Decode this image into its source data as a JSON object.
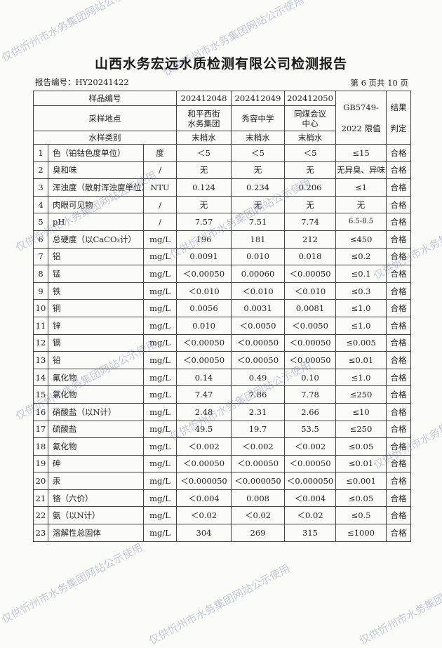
{
  "title": "山西水务宏远水质检测有限公司检测报告",
  "report_no": "报告编号：HY20241422",
  "page_no": "第 6 页共 10 页",
  "watermark": "仅供忻州市水务集团网站公示使用",
  "header": {
    "sample_no_label": "样品编号",
    "site_label": "采样地点",
    "type_label": "水样类别",
    "sample_nos": [
      "202412048",
      "202412049",
      "202412050"
    ],
    "sites": [
      "和平西街水务集团",
      "秀容中学",
      "同煤会议中心"
    ],
    "types": [
      "末梢水",
      "末梢水",
      "末梢水"
    ],
    "limit_label": "GB5749-2022 限值",
    "result_label": "结果判定"
  },
  "rows": [
    [
      "1",
      "色（铂钴色度单位）",
      "度",
      "＜5",
      "＜5",
      "＜5",
      "≤15",
      "合格"
    ],
    [
      "2",
      "臭和味",
      "/",
      "无",
      "无",
      "无",
      "无异臭、异味",
      "合格"
    ],
    [
      "3",
      "浑浊度（散射浑浊度单位）",
      "NTU",
      "0.124",
      "0.234",
      "0.206",
      "≤1",
      "合格"
    ],
    [
      "4",
      "肉眼可见物",
      "/",
      "无",
      "无",
      "无",
      "无",
      "合格"
    ],
    [
      "5",
      "pH",
      "/",
      "7.57",
      "7.51",
      "7.74",
      "6.5-8.5",
      "合格"
    ],
    [
      "6",
      "总硬度（以CaCO₃计）",
      "mg/L",
      "196",
      "181",
      "212",
      "≤450",
      "合格"
    ],
    [
      "7",
      "铝",
      "mg/L",
      "0.0091",
      "0.010",
      "0.018",
      "≤0.2",
      "合格"
    ],
    [
      "8",
      "锰",
      "mg/L",
      "＜0.00050",
      "0.00060",
      "＜0.00050",
      "≤0.1",
      "合格"
    ],
    [
      "9",
      "铁",
      "mg/L",
      "＜0.010",
      "＜0.010",
      "＜0.010",
      "≤0.3",
      "合格"
    ],
    [
      "10",
      "铜",
      "mg/L",
      "0.0056",
      "0.0031",
      "0.0081",
      "≤1.0",
      "合格"
    ],
    [
      "11",
      "锌",
      "mg/L",
      "0.010",
      "＜0.0050",
      "＜0.0050",
      "≤1.0",
      "合格"
    ],
    [
      "12",
      "镉",
      "mg/L",
      "＜0.00050",
      "＜0.00050",
      "＜0.00050",
      "≤0.005",
      "合格"
    ],
    [
      "13",
      "铅",
      "mg/L",
      "＜0.00050",
      "＜0.00050",
      "＜0.00050",
      "≤0.01",
      "合格"
    ],
    [
      "14",
      "氟化物",
      "mg/L",
      "0.14",
      "0.49",
      "0.10",
      "≤1.0",
      "合格"
    ],
    [
      "15",
      "氯化物",
      "mg/L",
      "7.47",
      "7.86",
      "7.78",
      "≤250",
      "合格"
    ],
    [
      "16",
      "硝酸盐（以N计）",
      "mg/L",
      "2.48",
      "2.31",
      "2.66",
      "≤10",
      "合格"
    ],
    [
      "17",
      "硫酸盐",
      "mg/L",
      "49.5",
      "19.7",
      "53.5",
      "≤250",
      "合格"
    ],
    [
      "18",
      "氰化物",
      "mg/L",
      "＜0.002",
      "＜0.002",
      "＜0.002",
      "≤0.05",
      "合格"
    ],
    [
      "19",
      "砷",
      "mg/L",
      "＜0.00050",
      "＜0.00050",
      "＜0.00050",
      "≤0.01",
      "合格"
    ],
    [
      "20",
      "汞",
      "mg/L",
      "＜0.000050",
      "＜0.000050",
      "＜0.000050",
      "≤0.001",
      "合格"
    ],
    [
      "21",
      "铬（六价）",
      "mg/L",
      "＜0.004",
      "0.008",
      "＜0.004",
      "≤0.05",
      "合格"
    ],
    [
      "22",
      "氨（以N计）",
      "mg/L",
      "＜0.02",
      "＜0.02",
      "＜0.02",
      "≤0.5",
      "合格"
    ],
    [
      "23",
      "溶解性总固体",
      "mg/L",
      "304",
      "269",
      "315",
      "≤1000",
      "合格"
    ]
  ]
}
